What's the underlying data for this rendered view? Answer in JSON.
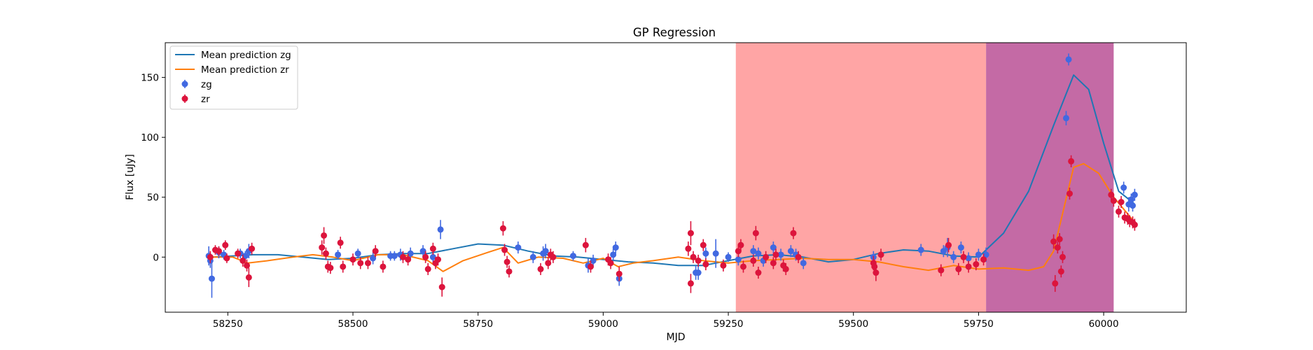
{
  "chart_data": {
    "type": "scatter",
    "title": "GP Regression",
    "xlabel": "MJD",
    "ylabel": "Flux [uJy]",
    "xlim": [
      58125,
      60165
    ],
    "ylim": [
      -46,
      179
    ],
    "xticks": [
      58250,
      58500,
      58750,
      59000,
      59250,
      59500,
      59750,
      60000
    ],
    "yticks": [
      0,
      50,
      100,
      150
    ],
    "grid": false,
    "legend_position": "upper left",
    "shaded_regions": [
      {
        "x0": 59265,
        "x1": 59765,
        "color": "#ffa5a5"
      },
      {
        "x0": 59765,
        "x1": 60020,
        "color": "#c46aa5"
      }
    ],
    "lines": [
      {
        "name": "Mean prediction zg",
        "color": "#1f77b4",
        "x": [
          58220,
          58260,
          58300,
          58350,
          58400,
          58450,
          58500,
          58550,
          58600,
          58650,
          58700,
          58750,
          58800,
          58850,
          58900,
          58950,
          59000,
          59050,
          59100,
          59150,
          59200,
          59250,
          59300,
          59350,
          59400,
          59450,
          59500,
          59550,
          59600,
          59650,
          59700,
          59750,
          59800,
          59850,
          59900,
          59940,
          59970,
          60000,
          60030,
          60060
        ],
        "y": [
          0,
          1,
          2,
          2,
          0,
          -2,
          -1,
          2,
          3,
          3,
          7,
          11,
          10,
          5,
          1,
          0,
          -2,
          -4,
          -5,
          -7,
          -7,
          -3,
          1,
          2,
          0,
          -4,
          -2,
          3,
          6,
          5,
          1,
          0,
          20,
          55,
          110,
          152,
          140,
          95,
          55,
          45
        ]
      },
      {
        "name": "Mean prediction zr",
        "color": "#ff7f0e",
        "x": [
          58220,
          58260,
          58290,
          58330,
          58380,
          58420,
          58460,
          58500,
          58550,
          58600,
          58650,
          58680,
          58720,
          58770,
          58800,
          58830,
          58870,
          58920,
          58960,
          59000,
          59030,
          59060,
          59100,
          59150,
          59200,
          59250,
          59300,
          59350,
          59400,
          59450,
          59500,
          59550,
          59600,
          59650,
          59700,
          59750,
          59800,
          59850,
          59880,
          59900,
          59920,
          59940,
          59960,
          59990,
          60020,
          60060
        ],
        "y": [
          0,
          0,
          -5,
          -3,
          0,
          2,
          0,
          -3,
          2,
          2,
          -3,
          -12,
          -3,
          4,
          8,
          -5,
          0,
          -1,
          -5,
          -1,
          -8,
          -5,
          -3,
          0,
          -3,
          -5,
          -3,
          -2,
          -1,
          -2,
          -2,
          -4,
          -8,
          -11,
          -7,
          -10,
          -9,
          -11,
          -8,
          5,
          40,
          75,
          78,
          70,
          50,
          30
        ]
      }
    ],
    "series": [
      {
        "name": "zg",
        "color": "#4169e1",
        "points": [
          {
            "x": 58212,
            "y": 1,
            "err": 8
          },
          {
            "x": 58215,
            "y": -3,
            "err": 6
          },
          {
            "x": 58218,
            "y": -18,
            "err": 16
          },
          {
            "x": 58232,
            "y": 4,
            "err": 5
          },
          {
            "x": 58242,
            "y": 2,
            "err": 4
          },
          {
            "x": 58275,
            "y": 3,
            "err": 4
          },
          {
            "x": 58285,
            "y": 1,
            "err": 4
          },
          {
            "x": 58292,
            "y": 5,
            "err": 6
          },
          {
            "x": 58470,
            "y": 2,
            "err": 4
          },
          {
            "x": 58510,
            "y": 3,
            "err": 4
          },
          {
            "x": 58540,
            "y": -1,
            "err": 5
          },
          {
            "x": 58575,
            "y": 1,
            "err": 4
          },
          {
            "x": 58583,
            "y": 1,
            "err": 4
          },
          {
            "x": 58595,
            "y": 2,
            "err": 5
          },
          {
            "x": 58615,
            "y": 3,
            "err": 5
          },
          {
            "x": 58640,
            "y": 5,
            "err": 5
          },
          {
            "x": 58660,
            "y": 0,
            "err": 5
          },
          {
            "x": 58675,
            "y": 23,
            "err": 8
          },
          {
            "x": 58830,
            "y": 8,
            "err": 5
          },
          {
            "x": 58860,
            "y": 0,
            "err": 5
          },
          {
            "x": 58880,
            "y": 3,
            "err": 6
          },
          {
            "x": 58885,
            "y": 5,
            "err": 6
          },
          {
            "x": 58940,
            "y": 1,
            "err": 4
          },
          {
            "x": 58970,
            "y": -7,
            "err": 6
          },
          {
            "x": 58980,
            "y": -3,
            "err": 5
          },
          {
            "x": 59020,
            "y": 2,
            "err": 5
          },
          {
            "x": 59025,
            "y": 8,
            "err": 5
          },
          {
            "x": 59032,
            "y": -18,
            "err": 6
          },
          {
            "x": 59185,
            "y": -13,
            "err": 6
          },
          {
            "x": 59190,
            "y": -13,
            "err": 6
          },
          {
            "x": 59205,
            "y": 3,
            "err": 5
          },
          {
            "x": 59225,
            "y": 3,
            "err": 12
          },
          {
            "x": 59250,
            "y": 0,
            "err": 4
          },
          {
            "x": 59270,
            "y": -2,
            "err": 5
          },
          {
            "x": 59300,
            "y": 5,
            "err": 5
          },
          {
            "x": 59310,
            "y": 3,
            "err": 5
          },
          {
            "x": 59320,
            "y": -3,
            "err": 5
          },
          {
            "x": 59340,
            "y": 8,
            "err": 5
          },
          {
            "x": 59355,
            "y": 2,
            "err": 5
          },
          {
            "x": 59375,
            "y": 5,
            "err": 5
          },
          {
            "x": 59385,
            "y": 2,
            "err": 5
          },
          {
            "x": 59400,
            "y": -5,
            "err": 5
          },
          {
            "x": 59540,
            "y": 0,
            "err": 5
          },
          {
            "x": 59635,
            "y": 6,
            "err": 5
          },
          {
            "x": 59680,
            "y": 5,
            "err": 5
          },
          {
            "x": 59688,
            "y": 8,
            "err": 8
          },
          {
            "x": 59700,
            "y": 0,
            "err": 5
          },
          {
            "x": 59715,
            "y": 8,
            "err": 5
          },
          {
            "x": 59730,
            "y": -1,
            "err": 5
          },
          {
            "x": 59750,
            "y": 2,
            "err": 5
          },
          {
            "x": 59765,
            "y": 2,
            "err": 6
          },
          {
            "x": 59925,
            "y": 116,
            "err": 6
          },
          {
            "x": 59930,
            "y": 165,
            "err": 5
          },
          {
            "x": 60040,
            "y": 58,
            "err": 5
          },
          {
            "x": 60050,
            "y": 44,
            "err": 6
          },
          {
            "x": 60055,
            "y": 48,
            "err": 5
          },
          {
            "x": 60058,
            "y": 43,
            "err": 5
          },
          {
            "x": 60062,
            "y": 52,
            "err": 5
          }
        ]
      },
      {
        "name": "zr",
        "color": "#dc143c",
        "points": [
          {
            "x": 58215,
            "y": 0,
            "err": 5
          },
          {
            "x": 58225,
            "y": 6,
            "err": 4
          },
          {
            "x": 58232,
            "y": 5,
            "err": 4
          },
          {
            "x": 58245,
            "y": 10,
            "err": 4
          },
          {
            "x": 58248,
            "y": -1,
            "err": 4
          },
          {
            "x": 58270,
            "y": 3,
            "err": 4
          },
          {
            "x": 58280,
            "y": -3,
            "err": 5
          },
          {
            "x": 58288,
            "y": -7,
            "err": 5
          },
          {
            "x": 58292,
            "y": -17,
            "err": 8
          },
          {
            "x": 58298,
            "y": 7,
            "err": 5
          },
          {
            "x": 58438,
            "y": 8,
            "err": 6
          },
          {
            "x": 58442,
            "y": 18,
            "err": 7
          },
          {
            "x": 58446,
            "y": 3,
            "err": 5
          },
          {
            "x": 58450,
            "y": -8,
            "err": 5
          },
          {
            "x": 58455,
            "y": -9,
            "err": 5
          },
          {
            "x": 58475,
            "y": 12,
            "err": 5
          },
          {
            "x": 58480,
            "y": -8,
            "err": 5
          },
          {
            "x": 58500,
            "y": -2,
            "err": 5
          },
          {
            "x": 58515,
            "y": -5,
            "err": 5
          },
          {
            "x": 58530,
            "y": -5,
            "err": 5
          },
          {
            "x": 58545,
            "y": 5,
            "err": 5
          },
          {
            "x": 58560,
            "y": -8,
            "err": 5
          },
          {
            "x": 58600,
            "y": 0,
            "err": 5
          },
          {
            "x": 58610,
            "y": -2,
            "err": 5
          },
          {
            "x": 58645,
            "y": 0,
            "err": 5
          },
          {
            "x": 58650,
            "y": -10,
            "err": 5
          },
          {
            "x": 58660,
            "y": 7,
            "err": 5
          },
          {
            "x": 58665,
            "y": -5,
            "err": 5
          },
          {
            "x": 58670,
            "y": -2,
            "err": 5
          },
          {
            "x": 58678,
            "y": -25,
            "err": 8
          },
          {
            "x": 58800,
            "y": 24,
            "err": 6
          },
          {
            "x": 58803,
            "y": 6,
            "err": 5
          },
          {
            "x": 58808,
            "y": -4,
            "err": 5
          },
          {
            "x": 58812,
            "y": -12,
            "err": 5
          },
          {
            "x": 58875,
            "y": -10,
            "err": 5
          },
          {
            "x": 58890,
            "y": -5,
            "err": 5
          },
          {
            "x": 58895,
            "y": 2,
            "err": 5
          },
          {
            "x": 58900,
            "y": 0,
            "err": 5
          },
          {
            "x": 58965,
            "y": 10,
            "err": 6
          },
          {
            "x": 58975,
            "y": -8,
            "err": 5
          },
          {
            "x": 59010,
            "y": -2,
            "err": 5
          },
          {
            "x": 59015,
            "y": -5,
            "err": 5
          },
          {
            "x": 59032,
            "y": -14,
            "err": 6
          },
          {
            "x": 59170,
            "y": 7,
            "err": 6
          },
          {
            "x": 59175,
            "y": 20,
            "err": 10
          },
          {
            "x": 59175,
            "y": -22,
            "err": 8
          },
          {
            "x": 59180,
            "y": 0,
            "err": 5
          },
          {
            "x": 59190,
            "y": -3,
            "err": 5
          },
          {
            "x": 59200,
            "y": 10,
            "err": 5
          },
          {
            "x": 59205,
            "y": -6,
            "err": 5
          },
          {
            "x": 59240,
            "y": -7,
            "err": 5
          },
          {
            "x": 59270,
            "y": 5,
            "err": 5
          },
          {
            "x": 59275,
            "y": 10,
            "err": 5
          },
          {
            "x": 59280,
            "y": -8,
            "err": 5
          },
          {
            "x": 59300,
            "y": -3,
            "err": 5
          },
          {
            "x": 59305,
            "y": 20,
            "err": 6
          },
          {
            "x": 59310,
            "y": -13,
            "err": 5
          },
          {
            "x": 59325,
            "y": 0,
            "err": 5
          },
          {
            "x": 59340,
            "y": -5,
            "err": 5
          },
          {
            "x": 59345,
            "y": 2,
            "err": 5
          },
          {
            "x": 59360,
            "y": -7,
            "err": 5
          },
          {
            "x": 59365,
            "y": -10,
            "err": 5
          },
          {
            "x": 59380,
            "y": 20,
            "err": 5
          },
          {
            "x": 59390,
            "y": 0,
            "err": 5
          },
          {
            "x": 59540,
            "y": -5,
            "err": 6
          },
          {
            "x": 59542,
            "y": -8,
            "err": 6
          },
          {
            "x": 59545,
            "y": -13,
            "err": 7
          },
          {
            "x": 59555,
            "y": 2,
            "err": 5
          },
          {
            "x": 59675,
            "y": -11,
            "err": 5
          },
          {
            "x": 59690,
            "y": 10,
            "err": 6
          },
          {
            "x": 59710,
            "y": -10,
            "err": 5
          },
          {
            "x": 59720,
            "y": 0,
            "err": 5
          },
          {
            "x": 59730,
            "y": -8,
            "err": 5
          },
          {
            "x": 59745,
            "y": -6,
            "err": 5
          },
          {
            "x": 59760,
            "y": -2,
            "err": 5
          },
          {
            "x": 59900,
            "y": 13,
            "err": 6
          },
          {
            "x": 59903,
            "y": -22,
            "err": 7
          },
          {
            "x": 59908,
            "y": 8,
            "err": 5
          },
          {
            "x": 59912,
            "y": 15,
            "err": 5
          },
          {
            "x": 59915,
            "y": -12,
            "err": 5
          },
          {
            "x": 59918,
            "y": 0,
            "err": 5
          },
          {
            "x": 59932,
            "y": 53,
            "err": 5
          },
          {
            "x": 59935,
            "y": 80,
            "err": 5
          },
          {
            "x": 60015,
            "y": 52,
            "err": 5
          },
          {
            "x": 60020,
            "y": 47,
            "err": 5
          },
          {
            "x": 60030,
            "y": 38,
            "err": 5
          },
          {
            "x": 60035,
            "y": 46,
            "err": 5
          },
          {
            "x": 60042,
            "y": 33,
            "err": 5
          },
          {
            "x": 60048,
            "y": 32,
            "err": 5
          },
          {
            "x": 60052,
            "y": 30,
            "err": 5
          },
          {
            "x": 60058,
            "y": 29,
            "err": 5
          },
          {
            "x": 60062,
            "y": 27,
            "err": 5
          }
        ]
      }
    ]
  }
}
